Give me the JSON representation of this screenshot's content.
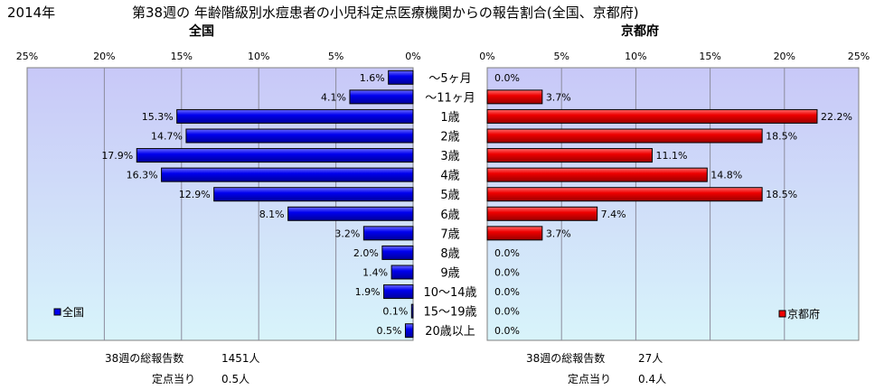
{
  "year": "2014年",
  "title": "第38週の 年齢階級別水痘患者の小児科定点医療機関からの報告割合(全国、京都府)",
  "panels": {
    "left": {
      "title": "全国",
      "legend": "全国",
      "report_label": "38週の総報告数",
      "report_value": "1451人",
      "per_site_label": "定点当り",
      "per_site_value": "0.5人"
    },
    "right": {
      "title": "京都府",
      "legend": "京都府",
      "report_label": "38週の総報告数",
      "report_value": "27人",
      "per_site_label": "定点当り",
      "per_site_value": "0.4人"
    }
  },
  "colors": {
    "plot_bg": "#c8c8f8",
    "plot_bg_bottom": "#d8f4fa",
    "national": "#0000ee",
    "kyoto": "#ee0000",
    "grid": "#8c8c9c"
  },
  "chart_data": [
    {
      "type": "bar",
      "orientation": "horizontal",
      "direction": "right-to-left",
      "title": "全国",
      "categories": [
        "～5ヶ月",
        "～11ヶ月",
        "1歳",
        "2歳",
        "3歳",
        "4歳",
        "5歳",
        "6歳",
        "7歳",
        "8歳",
        "9歳",
        "10～14歳",
        "15～19歳",
        "20歳以上"
      ],
      "series": [
        {
          "name": "全国",
          "values": [
            1.6,
            4.1,
            15.3,
            14.7,
            17.9,
            16.3,
            12.9,
            8.1,
            3.2,
            2.0,
            1.4,
            1.9,
            0.1,
            0.5
          ]
        }
      ],
      "data_labels": [
        "1.6%",
        "4.1%",
        "15.3%",
        "14.7%",
        "17.9%",
        "16.3%",
        "12.9%",
        "8.1%",
        "3.2%",
        "2.0%",
        "1.4%",
        "1.9%",
        "0.1%",
        "0.5%"
      ],
      "xlim": [
        0,
        25
      ],
      "xticks": [
        "25%",
        "20%",
        "15%",
        "10%",
        "5%",
        "0%"
      ],
      "grid": true,
      "legend_position": "bottom-left"
    },
    {
      "type": "bar",
      "orientation": "horizontal",
      "direction": "left-to-right",
      "title": "京都府",
      "categories": [
        "～5ヶ月",
        "～11ヶ月",
        "1歳",
        "2歳",
        "3歳",
        "4歳",
        "5歳",
        "6歳",
        "7歳",
        "8歳",
        "9歳",
        "10～14歳",
        "15～19歳",
        "20歳以上"
      ],
      "series": [
        {
          "name": "京都府",
          "values": [
            0.0,
            3.7,
            22.2,
            18.5,
            11.1,
            14.8,
            18.5,
            7.4,
            3.7,
            0.0,
            0.0,
            0.0,
            0.0,
            0.0
          ]
        }
      ],
      "data_labels": [
        "0.0%",
        "3.7%",
        "22.2%",
        "18.5%",
        "11.1%",
        "14.8%",
        "18.5%",
        "7.4%",
        "3.7%",
        "0.0%",
        "0.0%",
        "0.0%",
        "0.0%",
        "0.0%"
      ],
      "xlim": [
        0,
        25
      ],
      "xticks": [
        "0%",
        "5%",
        "10%",
        "15%",
        "20%",
        "25%"
      ],
      "grid": true,
      "legend_position": "bottom-right"
    }
  ]
}
